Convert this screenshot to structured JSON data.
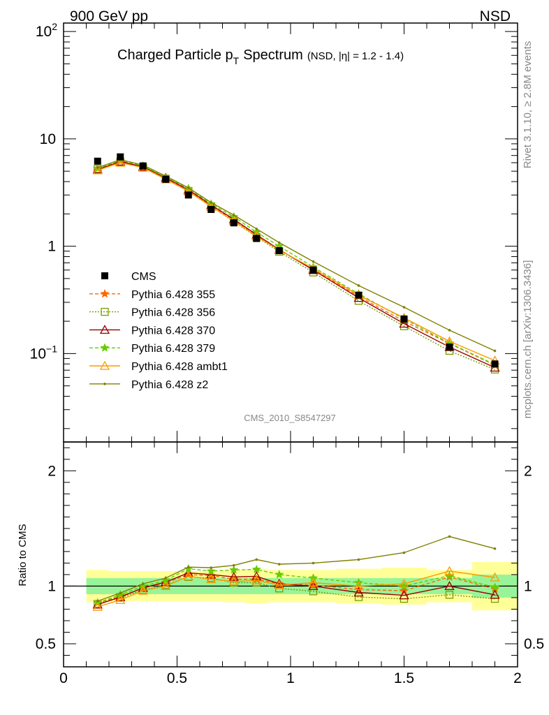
{
  "header": {
    "left": "900 GeV pp",
    "right": "NSD",
    "side_top": "Rivet 3.1.10, ≥ 2.8M events",
    "side_bottom": "mcplots.cern.ch [arXiv:1306.3436]"
  },
  "chart_data": [
    {
      "type": "line",
      "title_main": "Charged Particle p",
      "title_sub": "T",
      "title_tail": "Spectrum",
      "title_extra": "(NSD, |η| = 1.2 - 1.4)",
      "watermark": "CMS_2010_S8547297",
      "yscale": "log",
      "xlim": [
        0,
        2
      ],
      "ylim": [
        0.015,
        120
      ],
      "y_ticks": [
        {
          "v": 100,
          "base": "10",
          "exp": "2"
        },
        {
          "v": 10,
          "base": "10",
          "exp": ""
        },
        {
          "v": 1,
          "base": "1",
          "exp": ""
        },
        {
          "v": 0.1,
          "base": "10",
          "exp": "−1"
        }
      ],
      "x": [
        0.15,
        0.25,
        0.35,
        0.45,
        0.55,
        0.65,
        0.75,
        0.85,
        0.95,
        1.1,
        1.3,
        1.5,
        1.7,
        1.9
      ],
      "data": {
        "name": "CMS",
        "values": [
          6.2,
          6.8,
          5.6,
          4.2,
          3.0,
          2.2,
          1.65,
          1.18,
          0.91,
          0.6,
          0.35,
          0.21,
          0.115,
          0.08
        ]
      },
      "series": [
        {
          "name": "Pythia 6.428 355",
          "color": "#ff6600",
          "dash": "5,3",
          "marker": "star",
          "values": [
            5.3,
            6.2,
            5.5,
            4.3,
            3.3,
            2.4,
            1.75,
            1.25,
            0.93,
            0.61,
            0.34,
            0.2,
            0.124,
            0.078
          ]
        },
        {
          "name": "Pythia 6.428 356",
          "color": "#7a9a00",
          "dash": "2,2",
          "marker": "square",
          "values": [
            5.25,
            6.1,
            5.4,
            4.25,
            3.25,
            2.35,
            1.7,
            1.22,
            0.89,
            0.57,
            0.31,
            0.18,
            0.106,
            0.071
          ]
        },
        {
          "name": "Pythia 6.428 370",
          "color": "#990000",
          "dash": "",
          "marker": "triangle",
          "values": [
            5.2,
            6.15,
            5.5,
            4.35,
            3.35,
            2.42,
            1.78,
            1.28,
            0.93,
            0.6,
            0.33,
            0.19,
            0.115,
            0.074
          ]
        },
        {
          "name": "Pythia 6.428 379",
          "color": "#66cc00",
          "dash": "5,3",
          "marker": "star",
          "values": [
            5.3,
            6.3,
            5.6,
            4.4,
            3.45,
            2.48,
            1.88,
            1.35,
            1.0,
            0.64,
            0.36,
            0.21,
            0.125,
            0.079
          ]
        },
        {
          "name": "Pythia 6.428 ambt1",
          "color": "#ff9900",
          "dash": "",
          "marker": "triangle",
          "values": [
            5.1,
            6.0,
            5.4,
            4.2,
            3.25,
            2.33,
            1.72,
            1.24,
            0.92,
            0.62,
            0.35,
            0.215,
            0.13,
            0.086
          ]
        },
        {
          "name": "Pythia 6.428 z2",
          "color": "#808000",
          "dash": "",
          "marker": "dot",
          "values": [
            5.4,
            6.4,
            5.7,
            4.5,
            3.5,
            2.55,
            1.95,
            1.45,
            1.08,
            0.72,
            0.43,
            0.27,
            0.165,
            0.106
          ]
        }
      ]
    },
    {
      "type": "line",
      "ylabel": "Ratio to CMS",
      "xlim": [
        0,
        2
      ],
      "ylim": [
        0.3,
        2.25
      ],
      "y_ticks": [
        {
          "v": 2,
          "label": "2"
        },
        {
          "v": 1,
          "label": "1"
        },
        {
          "v": 0.5,
          "label": "0.5"
        }
      ],
      "x_ticks": [
        {
          "v": 0,
          "label": "0"
        },
        {
          "v": 0.5,
          "label": "0.5"
        },
        {
          "v": 1,
          "label": "1"
        },
        {
          "v": 1.5,
          "label": "1.5"
        },
        {
          "v": 2,
          "label": "2"
        }
      ],
      "bands": {
        "edges": [
          0.1,
          0.2,
          0.3,
          0.4,
          0.5,
          0.6,
          0.7,
          0.8,
          0.9,
          1.0,
          1.2,
          1.4,
          1.6,
          1.8,
          2.0
        ],
        "inner": [
          0.07,
          0.07,
          0.07,
          0.07,
          0.07,
          0.07,
          0.07,
          0.07,
          0.07,
          0.07,
          0.07,
          0.07,
          0.07,
          0.1
        ],
        "outer": [
          0.14,
          0.13,
          0.13,
          0.13,
          0.13,
          0.13,
          0.14,
          0.15,
          0.14,
          0.14,
          0.15,
          0.16,
          0.14,
          0.21
        ]
      },
      "series": [
        {
          "name": "Pythia 6.428 355",
          "values": [
            0.855,
            0.91,
            0.985,
            1.03,
            1.1,
            1.09,
            1.06,
            1.06,
            1.02,
            1.01,
            0.97,
            0.96,
            1.08,
            0.975
          ]
        },
        {
          "name": "Pythia 6.428 356",
          "values": [
            0.845,
            0.9,
            0.965,
            1.01,
            1.08,
            1.07,
            1.03,
            1.03,
            0.98,
            0.955,
            0.905,
            0.89,
            0.925,
            0.89
          ]
        },
        {
          "name": "Pythia 6.428 370",
          "values": [
            0.84,
            0.905,
            0.985,
            1.035,
            1.115,
            1.1,
            1.08,
            1.085,
            1.02,
            1.0,
            0.945,
            0.92,
            1.0,
            0.925
          ]
        },
        {
          "name": "Pythia 6.428 379",
          "values": [
            0.855,
            0.925,
            1.0,
            1.05,
            1.15,
            1.13,
            1.14,
            1.145,
            1.1,
            1.07,
            1.03,
            1.0,
            1.09,
            0.99
          ]
        },
        {
          "name": "Pythia 6.428 ambt1",
          "values": [
            0.82,
            0.88,
            0.96,
            1.0,
            1.085,
            1.06,
            1.04,
            1.05,
            1.01,
            1.03,
            1.0,
            1.02,
            1.13,
            1.075
          ]
        },
        {
          "name": "Pythia 6.428 z2",
          "values": [
            0.87,
            0.94,
            1.02,
            1.07,
            1.165,
            1.16,
            1.18,
            1.23,
            1.19,
            1.2,
            1.23,
            1.29,
            1.43,
            1.325
          ]
        }
      ]
    }
  ]
}
